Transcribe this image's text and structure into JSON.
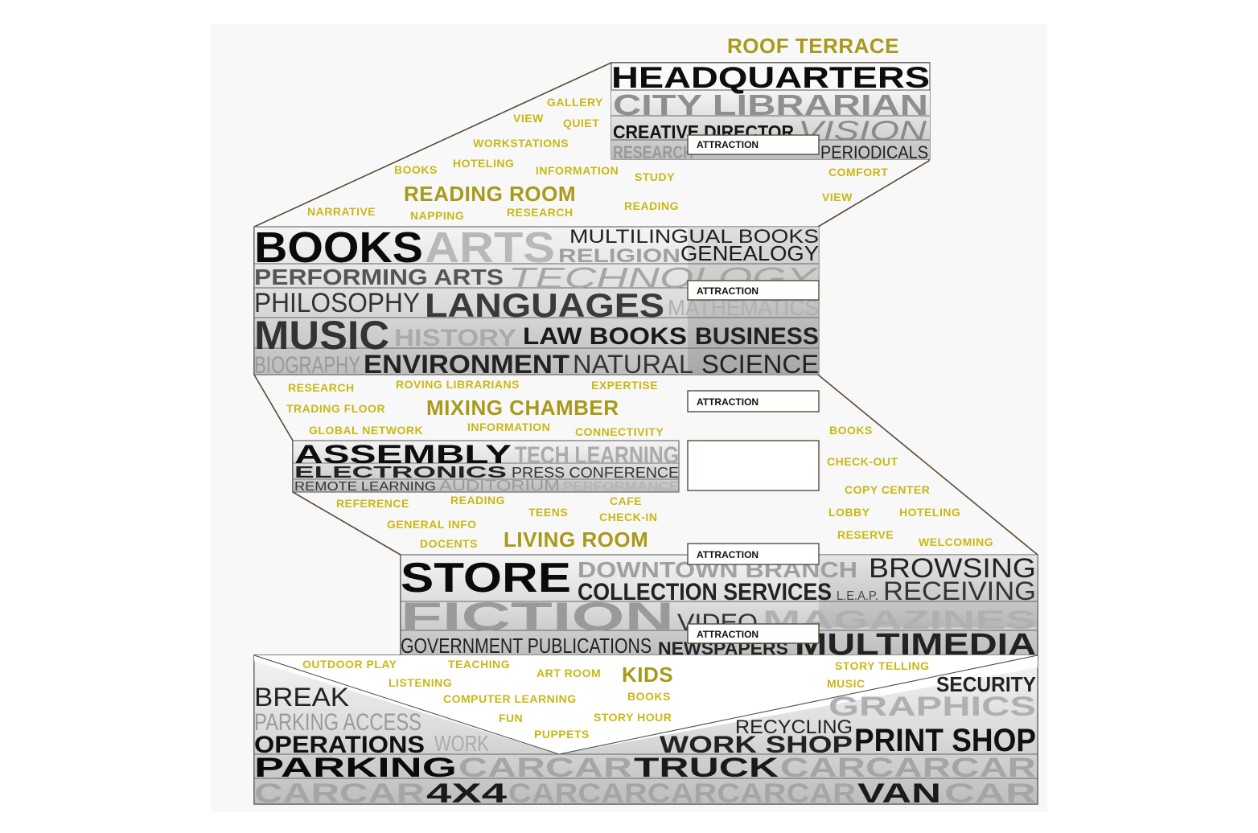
{
  "roof_terrace": "ROOF TERRACE",
  "attraction_label": "ATTRACTION",
  "headquarters": {
    "title": "HEADQUARTERS",
    "r2": "CITY LIBRARIAN",
    "r3a": "CREATIVE DIRECTOR",
    "r3b": "VISION",
    "r4a": "RESEARCH",
    "r4b": "PERIODICALS"
  },
  "reading_room": {
    "title": "READING ROOM",
    "words": [
      "GALLERY",
      "VIEW",
      "QUIET",
      "WORKSTATIONS",
      "BOOKS",
      "HOTELING",
      "INFORMATION",
      "STUDY",
      "COMFORT",
      "VIEW",
      "NARRATIVE",
      "NAPPING",
      "RESEARCH",
      "READING"
    ]
  },
  "books_block": {
    "books": "BOOKS",
    "arts": "ARTS",
    "multilingual": "MULTILINGUAL BOOKS",
    "religion": "RELIGION",
    "genealogy": "GENEALOGY",
    "performing_arts": "PERFORMING ARTS",
    "technology": "TECHNOLOGY",
    "philosophy": "PHILOSOPHY",
    "languages": "LANGUAGES",
    "mathematics": "MATHEMATICS",
    "music": "MUSIC",
    "history": "HISTORY",
    "law_books": "LAW BOOKS",
    "business": "BUSINESS",
    "biography": "BIOGRAPHY",
    "environment": "ENVIRONMENT",
    "natural": "NATURAL",
    "science": "SCIENCE"
  },
  "mixing_chamber": {
    "title": "MIXING CHAMBER",
    "words": [
      "RESEARCH",
      "ROVING LIBRARIANS",
      "EXPERTISE",
      "TRADING FLOOR",
      "GLOBAL NETWORK",
      "INFORMATION",
      "CONNECTIVITY"
    ]
  },
  "assembly": {
    "assembly": "ASSEMBLY",
    "tech_learning": "TECH LEARNING",
    "electronics": "ELECTRONICS",
    "press_conference": "PRESS CONFERENCE",
    "remote_learning": "REMOTE LEARNING",
    "auditorium": "AUDITORIUM",
    "performance": "PERFORMANCE"
  },
  "living_room": {
    "title": "LIVING ROOM",
    "words": [
      "REFERENCE",
      "READING",
      "CAFE",
      "TEENS",
      "CHECK-IN",
      "GENERAL INFO",
      "DOCENTS",
      "BOOKS",
      "CHECK-OUT",
      "COPY CENTER",
      "LOBBY",
      "HOTELING",
      "RESERVE",
      "WELCOMING"
    ]
  },
  "store_block": {
    "store": "STORE",
    "downtown_branch": "DOWNTOWN BRANCH",
    "browsing": "BROWSING",
    "collection_services": "COLLECTION SERVICES",
    "leap": "L.E.A.P.",
    "receiving": "RECEIVING",
    "fiction": "FICTION",
    "video": "VIDEO",
    "magazines": "MAGAZINES",
    "gov_publications": "GOVERNMENT PUBLICATIONS",
    "newspapers": "NEWSPAPERS",
    "multimedia": "MULTIMEDIA"
  },
  "kids": {
    "title": "KIDS",
    "words": [
      "OUTDOOR PLAY",
      "TEACHING",
      "ART ROOM",
      "STORY TELLING",
      "LISTENING",
      "MUSIC",
      "COMPUTER LEARNING",
      "BOOKS",
      "FUN",
      "STORY HOUR",
      "PUPPETS"
    ]
  },
  "parking_block": {
    "break": "BREAK",
    "security": "SECURITY",
    "parking_access": "PARKING ACCESS",
    "graphics": "GRAPHICS",
    "recycling": "RECYCLING",
    "operations": "OPERATIONS",
    "work": "WORK",
    "work_shop": "WORK SHOP",
    "print_shop": "PRINT SHOP",
    "parking": "PARKING",
    "carcar1": "CARCAR",
    "truck": "TRUCK",
    "carcarcar": "CARCARCAR",
    "carcar2": "CARCAR",
    "four_by_four": "4X4",
    "carcarcarcarcar": "CARCARCARCARCAR",
    "van": "VAN",
    "car": "CAR"
  }
}
